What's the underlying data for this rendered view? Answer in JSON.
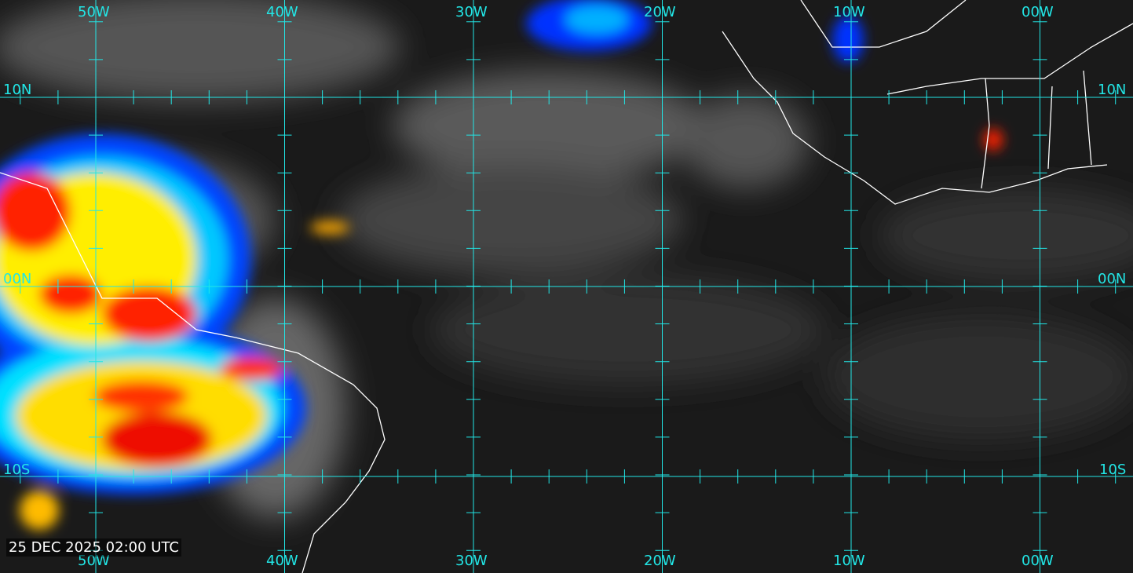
{
  "timestamp": "25 DEC 2025 02:00 UTC",
  "longitudes": [
    "50W",
    "40W",
    "30W",
    "20W",
    "10W",
    "00W"
  ],
  "latitudes": [
    "10N",
    "00N",
    "10S"
  ],
  "colors": {
    "grid": "#22e6e6",
    "coast": "#ffffff",
    "ocean": "#1a1a1a"
  },
  "imagery": "infrared satellite imagery with enhanced color cloud tops"
}
